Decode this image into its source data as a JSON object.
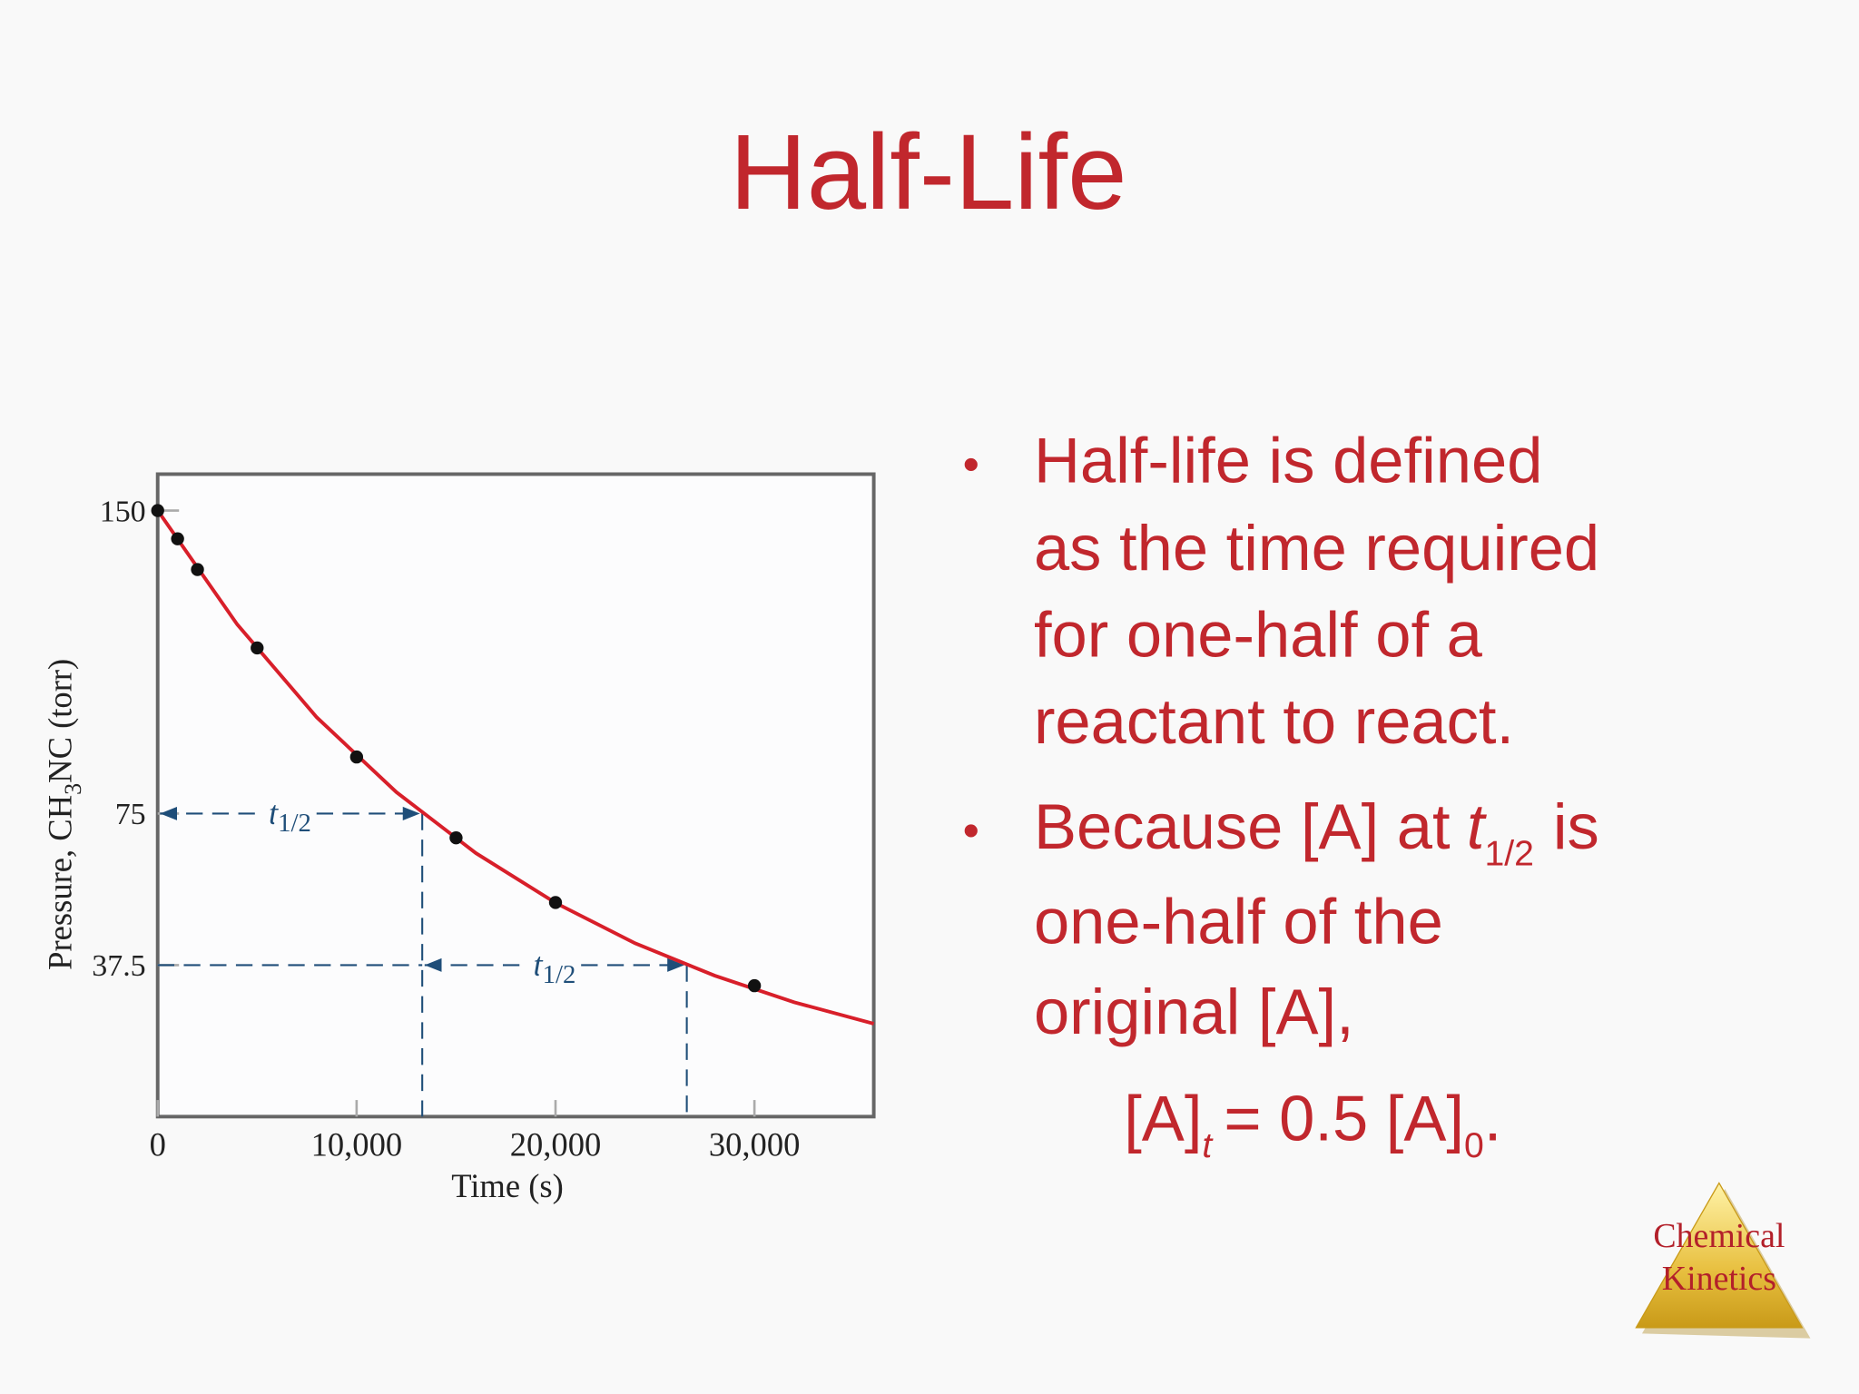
{
  "slide": {
    "title": "Half-Life",
    "bullets": [
      {
        "lines": [
          "Half-life is defined",
          "as the time required",
          "for one-half of a",
          "reactant to react."
        ]
      },
      {
        "first_line": {
          "text": "Because [A] at",
          "symbol": "t",
          "subscript": "1/2",
          "after": "is"
        },
        "lines": [
          "one-half of the",
          "original [A],"
        ],
        "equation": {
          "left": "[A]",
          "left_subscript": "t",
          "middle": "= 0.5 [A]",
          "right_subscript": "0",
          "end": "."
        }
      }
    ],
    "logo": {
      "lines": [
        "Chemical",
        "Kinetics"
      ]
    }
  },
  "chart_data": {
    "type": "scatter",
    "x_label": "Time (s)",
    "y_label": {
      "text": "Pressure, CH",
      "subscript": "3",
      "after": "NC (torr)"
    },
    "x": [
      0,
      1000,
      2000,
      5000,
      10000,
      15000,
      20000,
      30000
    ],
    "values": [
      150,
      143,
      135.4,
      116,
      89,
      69,
      53,
      32.4
    ],
    "color": "#111111",
    "fit_curve": {
      "x": [
        0,
        4000,
        8000,
        12000,
        16000,
        20000,
        24000,
        28000,
        32000,
        36000
      ],
      "values": [
        150,
        121.8,
        98.8,
        80.3,
        65.2,
        52.9,
        42.9,
        34.9,
        28.3,
        23
      ],
      "color": "#d81f2a"
    },
    "half_life_marks": [
      {
        "x_start": 0,
        "x_end": 13300,
        "y": 75,
        "label": "t",
        "label_subscript": "1/2"
      },
      {
        "x_start": 13300,
        "x_end": 26600,
        "y": 37.5,
        "label": "t",
        "label_subscript": "1/2"
      }
    ],
    "annotation_color": "#1f4e79",
    "xlim": [
      0,
      36000
    ],
    "ylim": [
      0,
      159
    ],
    "xticks": [
      0,
      {
        "value": 10000,
        "label": "10,000"
      },
      {
        "value": 20000,
        "label": "20,000"
      },
      {
        "value": 30000,
        "label": "30,000"
      }
    ],
    "yticks": [
      37.5,
      75,
      150
    ]
  }
}
